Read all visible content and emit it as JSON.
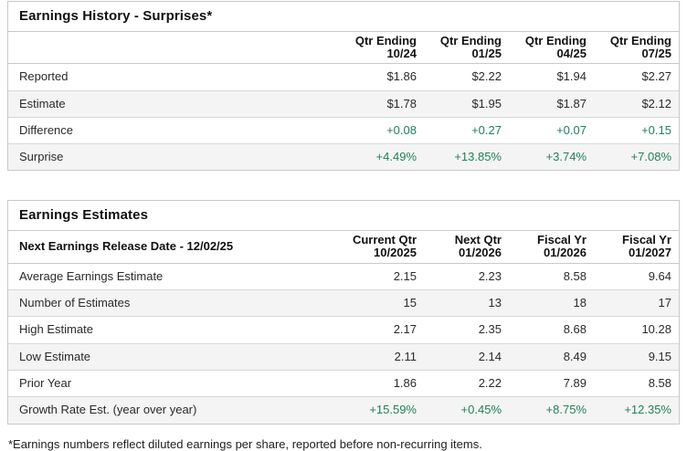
{
  "colors": {
    "positive": "#21815a",
    "row_alt": "#f4f4f4",
    "border": "#c9c9c9",
    "row_border": "#d7d7d7"
  },
  "earnings_history": {
    "title": "Earnings History - Surprises*",
    "columns": [
      {
        "line1": "Qtr Ending",
        "line2": "10/24"
      },
      {
        "line1": "Qtr Ending",
        "line2": "01/25"
      },
      {
        "line1": "Qtr Ending",
        "line2": "04/25"
      },
      {
        "line1": "Qtr Ending",
        "line2": "07/25"
      }
    ],
    "rows": [
      {
        "label": "Reported",
        "values": [
          "$1.86",
          "$2.22",
          "$1.94",
          "$2.27"
        ]
      },
      {
        "label": "Estimate",
        "values": [
          "$1.78",
          "$1.95",
          "$1.87",
          "$2.12"
        ]
      },
      {
        "label": "Difference",
        "values": [
          "+0.08",
          "+0.27",
          "+0.07",
          "+0.15"
        ]
      },
      {
        "label": "Surprise",
        "values": [
          "+4.49%",
          "+13.85%",
          "+3.74%",
          "+7.08%"
        ]
      }
    ]
  },
  "earnings_estimates": {
    "title": "Earnings Estimates",
    "release_label": "Next Earnings Release Date - 12/02/25",
    "columns": [
      {
        "line1": "Current Qtr",
        "line2": "10/2025"
      },
      {
        "line1": "Next Qtr",
        "line2": "01/2026"
      },
      {
        "line1": "Fiscal Yr",
        "line2": "01/2026"
      },
      {
        "line1": "Fiscal Yr",
        "line2": "01/2027"
      }
    ],
    "rows": [
      {
        "label": "Average Earnings Estimate",
        "values": [
          "2.15",
          "2.23",
          "8.58",
          "9.64"
        ]
      },
      {
        "label": "Number of Estimates",
        "values": [
          "15",
          "13",
          "18",
          "17"
        ]
      },
      {
        "label": "High Estimate",
        "values": [
          "2.17",
          "2.35",
          "8.68",
          "10.28"
        ]
      },
      {
        "label": "Low Estimate",
        "values": [
          "2.11",
          "2.14",
          "8.49",
          "9.15"
        ]
      },
      {
        "label": "Prior Year",
        "values": [
          "1.86",
          "2.22",
          "7.89",
          "8.58"
        ]
      },
      {
        "label": "Growth Rate Est. (year over year)",
        "values": [
          "+15.59%",
          "+0.45%",
          "+8.75%",
          "+12.35%"
        ]
      }
    ]
  },
  "footnote": "*Earnings numbers reflect diluted earnings per share, reported before non-recurring items."
}
